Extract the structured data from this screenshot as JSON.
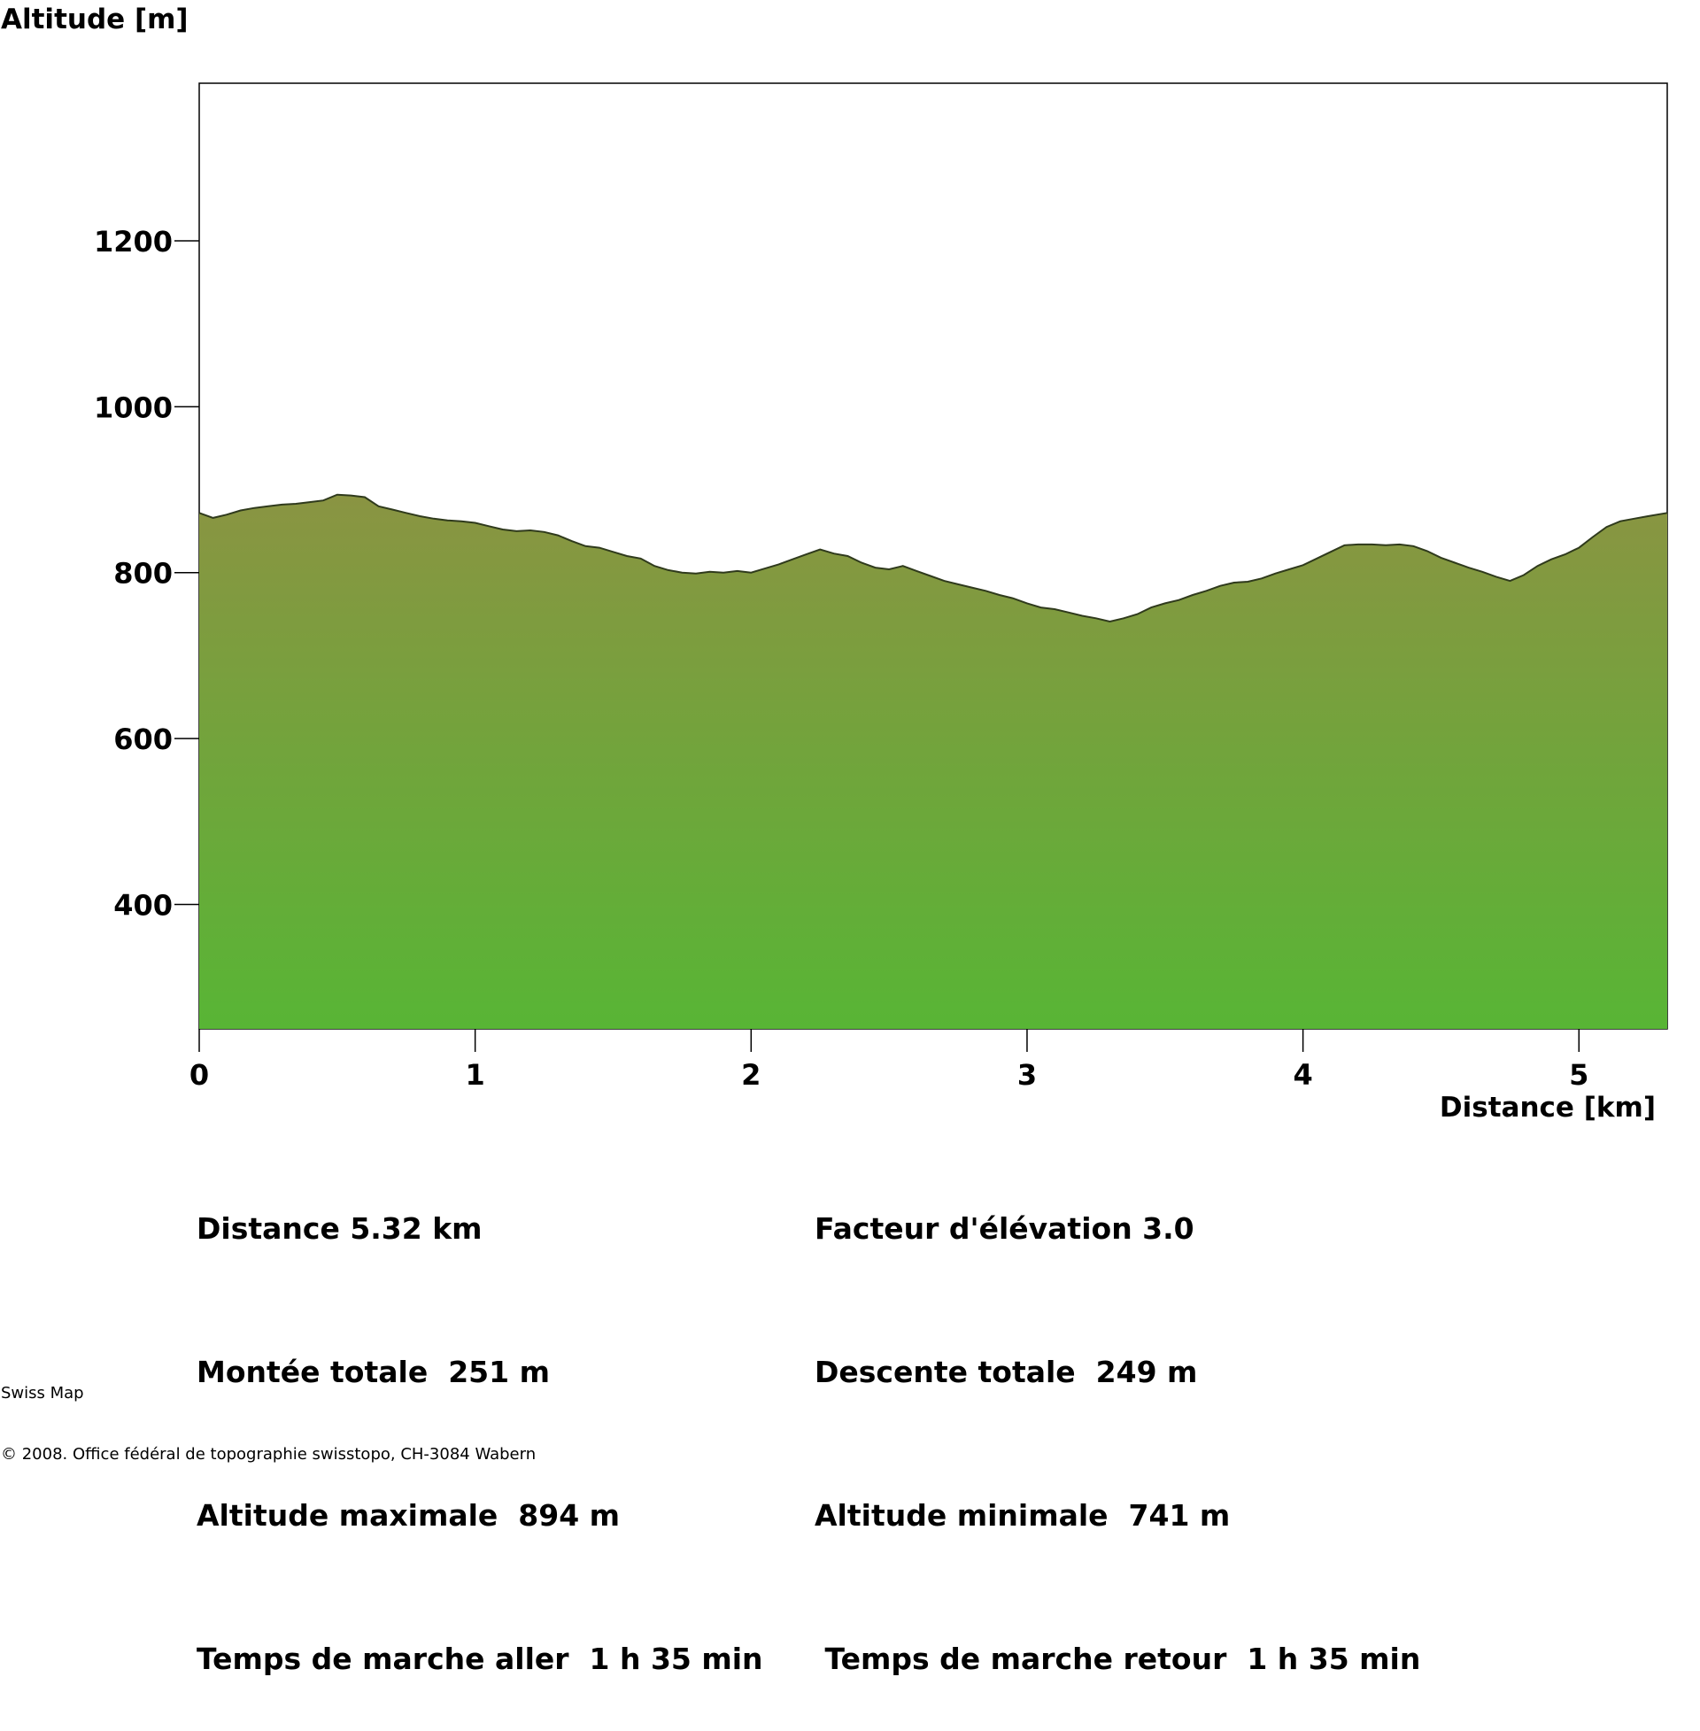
{
  "chart_data": {
    "type": "area",
    "ylabel": "Altitude [m]",
    "xlabel": "Distance [km]",
    "xlim": [
      0,
      5.32
    ],
    "ylim": [
      250,
      1390
    ],
    "xticks": [
      0,
      1,
      2,
      3,
      4,
      5
    ],
    "yticks": [
      400,
      600,
      800,
      1000,
      1200
    ],
    "grid": false,
    "fill_gradient": {
      "top": "#8a9442",
      "bottom": "#58b535"
    },
    "line_color": "#2f3a1c",
    "series": [
      {
        "x": [
          0,
          0.05,
          0.1,
          0.15,
          0.2,
          0.25,
          0.3,
          0.35,
          0.4,
          0.45,
          0.5,
          0.55,
          0.6,
          0.65,
          0.7,
          0.75,
          0.8,
          0.85,
          0.9,
          0.95,
          1.0,
          1.05,
          1.1,
          1.15,
          1.2,
          1.25,
          1.3,
          1.35,
          1.4,
          1.45,
          1.5,
          1.55,
          1.6,
          1.65,
          1.7,
          1.75,
          1.8,
          1.85,
          1.9,
          1.95,
          2.0,
          2.05,
          2.1,
          2.15,
          2.2,
          2.25,
          2.3,
          2.35,
          2.4,
          2.45,
          2.5,
          2.55,
          2.6,
          2.65,
          2.7,
          2.75,
          2.8,
          2.85,
          2.9,
          2.95,
          3.0,
          3.05,
          3.1,
          3.15,
          3.2,
          3.25,
          3.3,
          3.35,
          3.4,
          3.45,
          3.5,
          3.55,
          3.6,
          3.65,
          3.7,
          3.75,
          3.8,
          3.85,
          3.9,
          3.95,
          4.0,
          4.05,
          4.1,
          4.15,
          4.2,
          4.25,
          4.3,
          4.35,
          4.4,
          4.45,
          4.5,
          4.55,
          4.6,
          4.65,
          4.7,
          4.75,
          4.8,
          4.85,
          4.9,
          4.95,
          5.0,
          5.05,
          5.1,
          5.15,
          5.2,
          5.25,
          5.32
        ],
        "y": [
          872,
          866,
          870,
          875,
          878,
          880,
          882,
          883,
          885,
          887,
          894,
          893,
          891,
          880,
          876,
          872,
          868,
          865,
          863,
          862,
          860,
          856,
          852,
          850,
          851,
          849,
          845,
          838,
          832,
          830,
          825,
          820,
          817,
          808,
          803,
          800,
          799,
          801,
          800,
          802,
          800,
          805,
          810,
          816,
          822,
          828,
          823,
          820,
          812,
          806,
          804,
          808,
          802,
          796,
          790,
          786,
          782,
          778,
          773,
          769,
          763,
          758,
          756,
          752,
          748,
          745,
          741,
          745,
          750,
          758,
          763,
          767,
          773,
          778,
          784,
          788,
          789,
          793,
          799,
          804,
          809,
          817,
          825,
          833,
          834,
          834,
          833,
          834,
          832,
          826,
          818,
          812,
          806,
          801,
          795,
          790,
          797,
          808,
          816,
          822,
          830,
          843,
          855,
          862,
          865,
          868,
          872
        ]
      }
    ]
  },
  "stats": {
    "left": [
      "Distance 5.32 km",
      "Montée totale  251 m",
      "Altitude maximale  894 m",
      "Temps de marche aller  1 h 35 min"
    ],
    "right": [
      "Facteur d'élévation 3.0",
      "Descente totale  249 m",
      "Altitude minimale  741 m",
      " Temps de marche retour  1 h 35 min"
    ]
  },
  "footer": {
    "line1": "Swiss Map",
    "line2": "© 2008. Office fédéral de topographie swisstopo, CH-3084 Wabern"
  }
}
